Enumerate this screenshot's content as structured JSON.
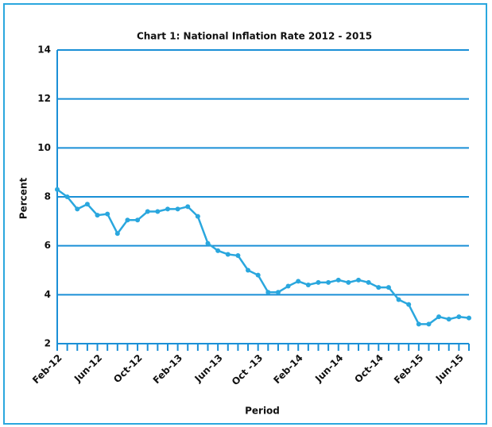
{
  "chart_data": {
    "type": "line",
    "title": "Chart 1: National Inflation Rate 2012 - 2015",
    "xlabel": "Period",
    "ylabel": "Percent",
    "categories": [
      "Feb-12",
      null,
      null,
      null,
      "Jun-12",
      null,
      null,
      null,
      "Oct-12",
      null,
      null,
      null,
      "Feb-13",
      null,
      null,
      null,
      "Jun-13",
      null,
      null,
      null,
      "Oct -13",
      null,
      null,
      null,
      "Feb-14",
      null,
      null,
      null,
      "Jun-14",
      null,
      null,
      null,
      "Oct-14",
      null,
      null,
      null,
      "Feb-15",
      null,
      null,
      null,
      "Jun-15",
      null
    ],
    "series": [
      {
        "name": "National Inflation Rate",
        "color": "#2aa7de",
        "values": [
          8.3,
          8.0,
          7.5,
          7.7,
          7.25,
          7.3,
          6.5,
          7.05,
          7.05,
          7.4,
          7.4,
          7.5,
          7.5,
          7.6,
          7.2,
          6.1,
          5.8,
          5.65,
          5.6,
          5.0,
          4.8,
          4.1,
          4.1,
          4.35,
          4.55,
          4.4,
          4.5,
          4.5,
          4.6,
          4.5,
          4.6,
          4.5,
          4.3,
          4.3,
          3.8,
          3.6,
          2.8,
          2.8,
          3.1,
          3.0,
          3.1,
          3.05
        ]
      }
    ],
    "ylim": [
      2,
      14
    ],
    "yticks": [
      2,
      4,
      6,
      8,
      10,
      12,
      14
    ],
    "grid": true,
    "grid_color": "#1a8fd6"
  }
}
